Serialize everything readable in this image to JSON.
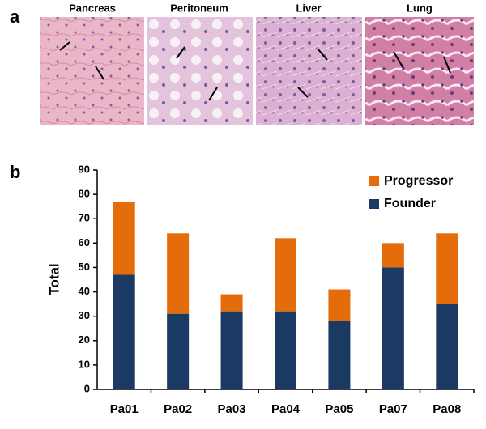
{
  "figure": {
    "panel_labels": [
      "a",
      "b"
    ],
    "image_titles": [
      "Pancreas",
      "Peritoneum",
      "Liver",
      "Lung"
    ]
  },
  "chart_data": {
    "type": "stacked_bar",
    "y_label": "Total",
    "categories": [
      "Pa01",
      "Pa02",
      "Pa03",
      "Pa04",
      "Pa05",
      "Pa07",
      "Pa08"
    ],
    "series": [
      {
        "name": "Founder",
        "color": "#1b3a63",
        "values": [
          47,
          31,
          32,
          32,
          28,
          50,
          35
        ]
      },
      {
        "name": "Progressor",
        "color": "#e46c0a",
        "values": [
          30,
          33,
          7,
          30,
          13,
          10,
          29
        ]
      }
    ],
    "ylim": [
      0,
      90
    ],
    "yticks": [
      0,
      10,
      20,
      30,
      40,
      50,
      60,
      70,
      80,
      90
    ],
    "legend": "top-right"
  }
}
